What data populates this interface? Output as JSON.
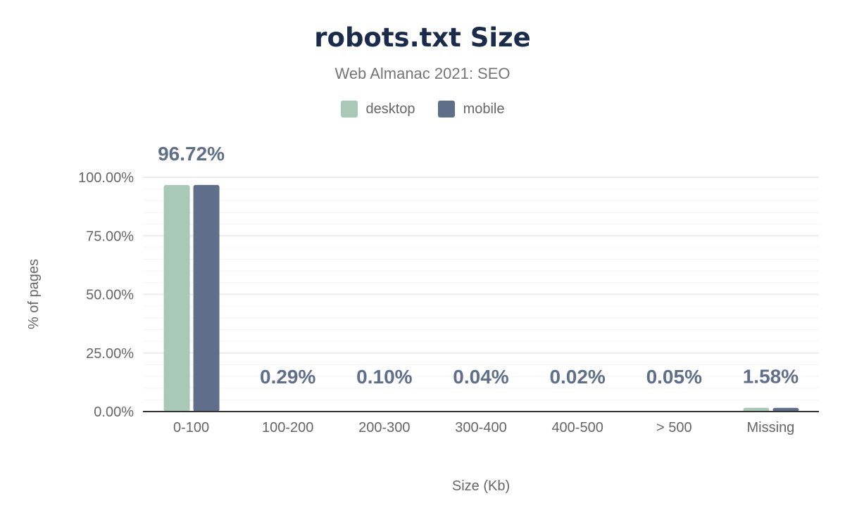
{
  "chart_data": {
    "type": "bar",
    "title": "robots.txt Size",
    "subtitle": "Web Almanac 2021: SEO",
    "xlabel": "Size (Kb)",
    "ylabel": "% of pages",
    "ylim": [
      0,
      100
    ],
    "yticks": [
      "0.00%",
      "25.00%",
      "50.00%",
      "75.00%",
      "100.00%"
    ],
    "grid": true,
    "legend_position": "top",
    "categories": [
      "0-100",
      "100-200",
      "200-300",
      "300-400",
      "400-500",
      "> 500",
      "Missing"
    ],
    "series": [
      {
        "name": "desktop",
        "color": "#a8c9b8",
        "values": [
          96.7,
          0.3,
          0.1,
          0.04,
          0.02,
          0.05,
          1.6
        ]
      },
      {
        "name": "mobile",
        "color": "#5f6f8a",
        "values": [
          96.72,
          0.29,
          0.1,
          0.04,
          0.02,
          0.05,
          1.58
        ]
      }
    ],
    "data_labels": [
      "96.72%",
      "0.29%",
      "0.10%",
      "0.04%",
      "0.02%",
      "0.05%",
      "1.58%"
    ]
  }
}
